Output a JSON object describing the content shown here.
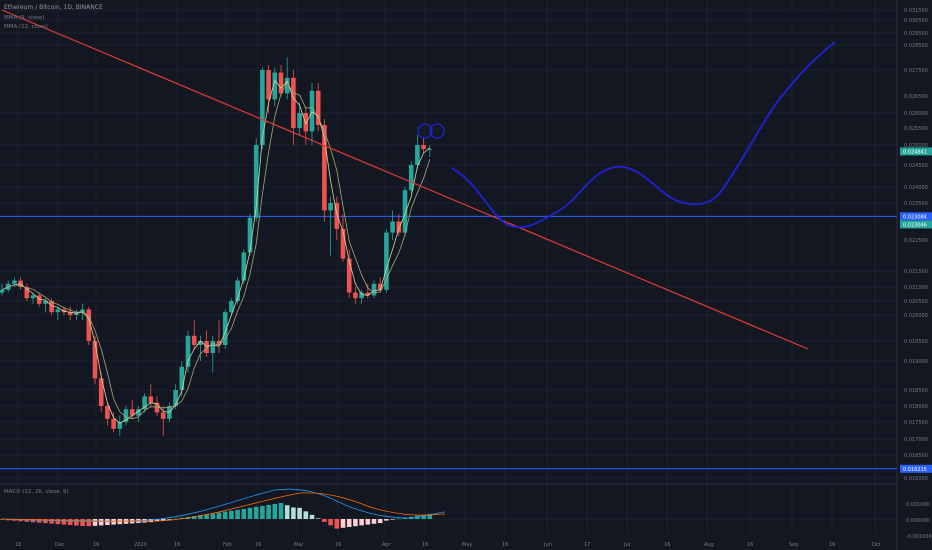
{
  "header": {
    "symbol": "Ethereum / Bitcoin, 1D, BINANCE",
    "ma1": "MMA (9, close)",
    "ma2": "MMA (12, close)"
  },
  "macd": {
    "label": "MACD (12, 26, close, 9)"
  },
  "chart_data": {
    "type": "candlestick",
    "y_ticks": [
      "0.031500",
      "0.030500",
      "0.029500",
      "0.028500",
      "0.027500",
      "0.026500",
      "0.026000",
      "0.025500",
      "0.025000",
      "0.024500",
      "0.024000",
      "0.023500",
      "0.022500",
      "0.021500",
      "0.021000",
      "0.020500",
      "0.020000",
      "0.019500",
      "0.019000",
      "0.018500",
      "0.018000",
      "0.017500",
      "0.017000",
      "0.016500",
      "0.016000"
    ],
    "x_ticks": [
      "18",
      "Dec",
      "16",
      "2020",
      "16",
      "Feb",
      "16",
      "Mar",
      "16",
      "Apr",
      "16",
      "May",
      "16",
      "Jun",
      "17",
      "Jul",
      "16",
      "Aug",
      "16",
      "Sep",
      "16",
      "Oct"
    ],
    "price_labels": [
      {
        "text": "0.024841",
        "price": 0.02484,
        "color": "#26a69a"
      },
      {
        "text": "0.023084",
        "price": 0.02314,
        "color": "#2962ff"
      },
      {
        "text": "0.023046",
        "price": 0.02292,
        "color": "#26a69a"
      },
      {
        "text": "0.016215",
        "price": 0.0162,
        "color": "#2962ff"
      }
    ],
    "horizontal_lines": [
      {
        "price": 0.02314,
        "color": "#2962ff"
      },
      {
        "price": 0.0162,
        "color": "#2962ff"
      }
    ],
    "trendline": {
      "start": [
        0,
        0.0338
      ],
      "end": [
        130,
        0.0193
      ],
      "color": "#e53935"
    },
    "candles": [
      [
        0.0208,
        0.0211,
        0.0207,
        0.0209
      ],
      [
        0.0209,
        0.0212,
        0.0208,
        0.0211
      ],
      [
        0.0211,
        0.0213,
        0.021,
        0.0212
      ],
      [
        0.0212,
        0.0213,
        0.0209,
        0.021
      ],
      [
        0.021,
        0.0211,
        0.0205,
        0.0206
      ],
      [
        0.0206,
        0.0208,
        0.0204,
        0.0207
      ],
      [
        0.0207,
        0.0208,
        0.0203,
        0.0204
      ],
      [
        0.0204,
        0.0206,
        0.0201,
        0.0205
      ],
      [
        0.0205,
        0.0206,
        0.02,
        0.0201
      ],
      [
        0.0201,
        0.0203,
        0.0199,
        0.0202
      ],
      [
        0.0202,
        0.0203,
        0.02,
        0.0201
      ],
      [
        0.0201,
        0.0203,
        0.0199,
        0.02
      ],
      [
        0.02,
        0.0202,
        0.0199,
        0.0201
      ],
      [
        0.0201,
        0.0204,
        0.0199,
        0.0202
      ],
      [
        0.0202,
        0.0203,
        0.0194,
        0.0195
      ],
      [
        0.0195,
        0.0196,
        0.0186,
        0.0187
      ],
      [
        0.0187,
        0.0188,
        0.0178,
        0.018
      ],
      [
        0.018,
        0.0181,
        0.0174,
        0.0176
      ],
      [
        0.0176,
        0.0178,
        0.0172,
        0.0173
      ],
      [
        0.0173,
        0.0177,
        0.0171,
        0.0175
      ],
      [
        0.0175,
        0.018,
        0.0174,
        0.0179
      ],
      [
        0.0179,
        0.0182,
        0.0176,
        0.0177
      ],
      [
        0.0177,
        0.018,
        0.0175,
        0.0179
      ],
      [
        0.0179,
        0.0184,
        0.0178,
        0.0183
      ],
      [
        0.0183,
        0.0186,
        0.018,
        0.0181
      ],
      [
        0.0181,
        0.0183,
        0.0177,
        0.0178
      ],
      [
        0.0178,
        0.018,
        0.0171,
        0.0176
      ],
      [
        0.0176,
        0.0181,
        0.0175,
        0.018
      ],
      [
        0.018,
        0.0186,
        0.0179,
        0.0185
      ],
      [
        0.0185,
        0.019,
        0.0183,
        0.0189
      ],
      [
        0.0189,
        0.0197,
        0.0188,
        0.0196
      ],
      [
        0.0196,
        0.0199,
        0.0193,
        0.0194
      ],
      [
        0.0194,
        0.0196,
        0.019,
        0.0195
      ],
      [
        0.0195,
        0.0197,
        0.0191,
        0.0192
      ],
      [
        0.0192,
        0.0196,
        0.0188,
        0.0195
      ],
      [
        0.0195,
        0.0199,
        0.0192,
        0.0194
      ],
      [
        0.0194,
        0.0202,
        0.0193,
        0.0201
      ],
      [
        0.0201,
        0.0206,
        0.02,
        0.0205
      ],
      [
        0.0205,
        0.0213,
        0.0204,
        0.0212
      ],
      [
        0.0212,
        0.0222,
        0.0211,
        0.0221
      ],
      [
        0.0221,
        0.0232,
        0.022,
        0.0231
      ],
      [
        0.0231,
        0.0252,
        0.023,
        0.025
      ],
      [
        0.025,
        0.0276,
        0.0249,
        0.0275
      ],
      [
        0.0275,
        0.0277,
        0.026,
        0.0264
      ],
      [
        0.0264,
        0.0276,
        0.0262,
        0.0274
      ],
      [
        0.0274,
        0.0277,
        0.0265,
        0.0266
      ],
      [
        0.0266,
        0.028,
        0.0264,
        0.0272
      ],
      [
        0.0272,
        0.0275,
        0.025,
        0.0255
      ],
      [
        0.0255,
        0.0263,
        0.0253,
        0.026
      ],
      [
        0.026,
        0.0262,
        0.025,
        0.0254
      ],
      [
        0.0254,
        0.027,
        0.025,
        0.0267
      ],
      [
        0.0267,
        0.027,
        0.0254,
        0.0256
      ],
      [
        0.0256,
        0.0258,
        0.023,
        0.0233
      ],
      [
        0.0233,
        0.0237,
        0.022,
        0.0235
      ],
      [
        0.0235,
        0.0237,
        0.0225,
        0.0228
      ],
      [
        0.0228,
        0.0232,
        0.0218,
        0.0219
      ],
      [
        0.0219,
        0.0222,
        0.0206,
        0.0208
      ],
      [
        0.0208,
        0.021,
        0.0204,
        0.0206
      ],
      [
        0.0206,
        0.0209,
        0.0204,
        0.0208
      ],
      [
        0.0208,
        0.0211,
        0.0206,
        0.0207
      ],
      [
        0.0207,
        0.0212,
        0.0206,
        0.0211
      ],
      [
        0.0211,
        0.0213,
        0.0208,
        0.0209
      ],
      [
        0.0209,
        0.0228,
        0.0208,
        0.0227
      ],
      [
        0.0227,
        0.0233,
        0.0225,
        0.023
      ],
      [
        0.023,
        0.0232,
        0.0226,
        0.0227
      ],
      [
        0.0227,
        0.024,
        0.0226,
        0.0239
      ],
      [
        0.0239,
        0.0246,
        0.0238,
        0.0245
      ],
      [
        0.0245,
        0.0253,
        0.0244,
        0.025
      ],
      [
        0.025,
        0.0252,
        0.0248,
        0.0249
      ],
      [
        0.0249,
        0.025,
        0.0247,
        0.0249
      ]
    ],
    "projection_color": "#1e22d6"
  }
}
